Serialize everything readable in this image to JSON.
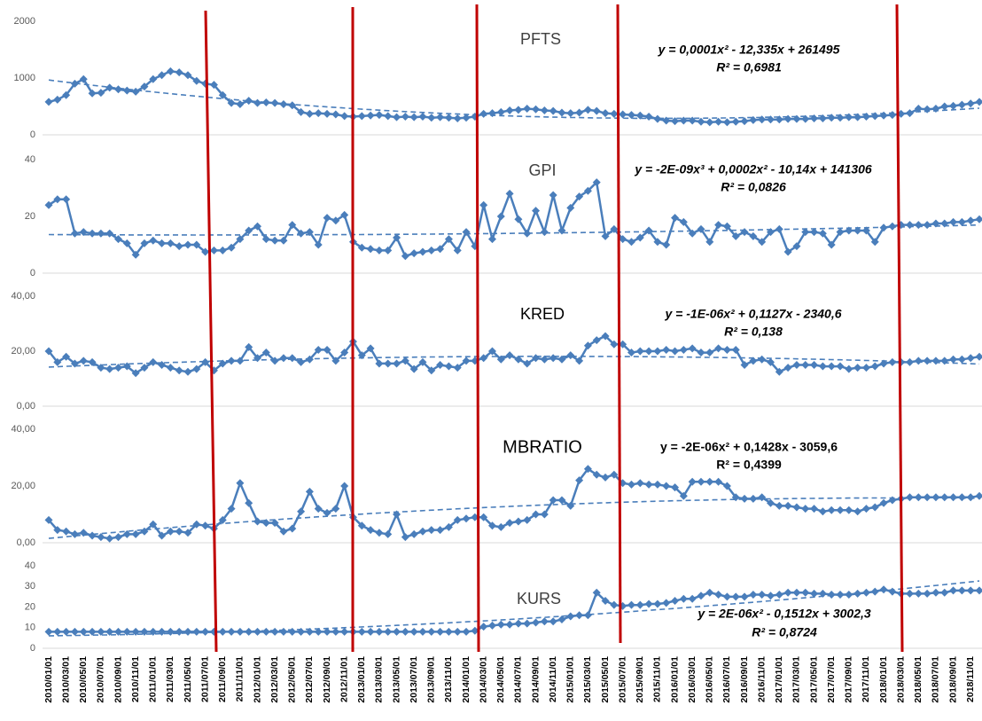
{
  "chart_data": [
    {
      "type": "line",
      "title": "PFTS",
      "equation": "y = 0,0001x² - 12,335x + 261495",
      "r2": "R² = 0,6981",
      "color": "#4a7ebb",
      "ylim": [
        0,
        2000
      ],
      "yticks": [
        0,
        1000,
        2000
      ],
      "values": [
        580,
        620,
        700,
        900,
        980,
        730,
        740,
        830,
        800,
        780,
        760,
        850,
        980,
        1050,
        1120,
        1100,
        1050,
        950,
        900,
        880,
        700,
        560,
        540,
        600,
        560,
        570,
        560,
        540,
        520,
        400,
        370,
        380,
        370,
        360,
        330,
        320,
        330,
        340,
        350,
        330,
        310,
        320,
        310,
        320,
        300,
        310,
        300,
        290,
        300,
        320,
        370,
        380,
        400,
        430,
        440,
        460,
        450,
        430,
        420,
        390,
        380,
        390,
        440,
        420,
        380,
        370,
        360,
        350,
        340,
        320,
        280,
        250,
        240,
        250,
        250,
        230,
        220,
        230,
        220,
        230,
        240,
        260,
        270,
        270,
        270,
        280,
        280,
        280,
        290,
        290,
        300,
        300,
        310,
        310,
        320,
        330,
        340,
        350,
        370,
        380,
        460,
        450,
        460,
        500,
        510,
        530,
        550,
        580
      ]
    },
    {
      "type": "line",
      "title": "GPI",
      "equation": "y = -2E-09x³ + 0,0002x² - 10,14x + 141306",
      "r2": "R² = 0,0826",
      "color": "#4a7ebb",
      "ylim": [
        0,
        40
      ],
      "yticks": [
        0,
        20,
        40
      ],
      "values": [
        24,
        26,
        26,
        14,
        14.5,
        14,
        14,
        14,
        12,
        10.5,
        6.5,
        10.5,
        11.5,
        10.5,
        10.5,
        9.5,
        10,
        10,
        7.5,
        8,
        8,
        9,
        12,
        15,
        16.5,
        12,
        11.5,
        11.5,
        17,
        14,
        14.5,
        10,
        19.5,
        18.5,
        20.5,
        11,
        9,
        8.5,
        8,
        8,
        12.5,
        6,
        7,
        7.5,
        8,
        8.5,
        12,
        8,
        14.5,
        9.5,
        24,
        12,
        20,
        28,
        19,
        14,
        22,
        14.5,
        27.5,
        15,
        23,
        27,
        29,
        32,
        13,
        15.5,
        12,
        11,
        12.5,
        15,
        11,
        10,
        19.5,
        18,
        14,
        15.5,
        11,
        17,
        16.5,
        13,
        14.5,
        13,
        11,
        14.5,
        15.5,
        7.5,
        9.5,
        14.5,
        14.5,
        14,
        10,
        14.5,
        15,
        15,
        15,
        11,
        16,
        16.5,
        17,
        17,
        17,
        17,
        17.5,
        17.5,
        18,
        18,
        18.5,
        19
      ]
    },
    {
      "type": "line",
      "title": "KRED",
      "equation": "y = -1E-06x² + 0,1127x - 2340,6",
      "r2": "R² = 0,138",
      "color": "#4a7ebb",
      "ylim": [
        0,
        40
      ],
      "yticks": [
        {
          "value": 0,
          "label": "0,00"
        },
        {
          "value": 20,
          "label": "20,00"
        },
        {
          "value": 40,
          "label": "40,00"
        }
      ],
      "values": [
        20,
        16,
        18,
        15.5,
        16.5,
        16,
        14,
        13.5,
        14,
        14.5,
        12,
        14,
        16,
        15,
        14,
        13,
        12.5,
        13.5,
        16,
        13,
        15.5,
        16.5,
        16.5,
        21.5,
        17.5,
        19.5,
        16.5,
        17.5,
        17.5,
        16,
        17,
        20.5,
        20.5,
        16.5,
        19.5,
        23.5,
        18.5,
        21,
        15.5,
        15.5,
        15.5,
        16.5,
        13.5,
        16,
        13,
        15,
        14.5,
        14,
        16.5,
        16.5,
        17.5,
        20,
        17,
        18.5,
        17,
        15.5,
        17.5,
        17,
        17.5,
        17,
        18.5,
        16.5,
        22,
        24,
        25.5,
        22.5,
        22.5,
        19.5,
        20,
        20,
        20,
        20.5,
        20,
        20.5,
        21,
        19.5,
        19.5,
        21,
        20.5,
        20.5,
        15,
        16.5,
        17,
        16,
        12.5,
        14,
        15,
        15,
        15,
        14.5,
        14.5,
        14.5,
        13.5,
        14,
        14,
        14.5,
        15.5,
        16,
        16,
        16,
        16.5,
        16.5,
        16.5,
        16.5,
        17,
        17,
        17.5,
        18
      ]
    },
    {
      "type": "line",
      "title": "MBRATIO",
      "equation": "y = -2E-06x² + 0,1428x - 3059,6",
      "r2": "R² = 0,4399",
      "color": "#4a7ebb",
      "ylim": [
        0,
        40
      ],
      "yticks": [
        {
          "value": 0,
          "label": "0,00"
        },
        {
          "value": 20,
          "label": "20,00"
        },
        {
          "value": 40,
          "label": "40,00"
        }
      ],
      "values": [
        8,
        4.5,
        4,
        3,
        3.5,
        2.5,
        2,
        1.5,
        2,
        3,
        3,
        4,
        6.5,
        2.5,
        4,
        4,
        3.5,
        6.5,
        6,
        5,
        8,
        12,
        21,
        14,
        7.5,
        7,
        7,
        4,
        5,
        11,
        18,
        12,
        10.5,
        12,
        20,
        9,
        6,
        4.5,
        3.5,
        3,
        10,
        2,
        3,
        4,
        4.5,
        4.5,
        5.5,
        8,
        8.5,
        9,
        9,
        6,
        5.5,
        7,
        7.5,
        8,
        10,
        10,
        15,
        15,
        13,
        22,
        26,
        24,
        23,
        24,
        21,
        20.5,
        21,
        20.5,
        20.5,
        20,
        19.5,
        16.5,
        21.5,
        21.5,
        21.5,
        21.5,
        20,
        16,
        15.5,
        15.5,
        16,
        14,
        13,
        13,
        12.5,
        12,
        12,
        11,
        11.5,
        11.5,
        11.5,
        11,
        12,
        12.5,
        14,
        15,
        15.5,
        16,
        16,
        16,
        16,
        16,
        16,
        16,
        16,
        16.5
      ]
    },
    {
      "type": "line",
      "title": "KURS",
      "equation": "y = 2E-06x² - 0,1512x + 3002,3",
      "r2": "R² = 0,8724",
      "color": "#4a7ebb",
      "ylim": [
        0,
        40
      ],
      "yticks": [
        0,
        10,
        20,
        30,
        40
      ],
      "categories": [
        "2010/01/01",
        null,
        "2010/03/01",
        null,
        "2010/05/01",
        null,
        "2010/07/01",
        null,
        "2010/09/01",
        null,
        "2010/11/01",
        null,
        "2011/01/01",
        null,
        "2011/03/01",
        null,
        "2011/05/01",
        null,
        "2011/07/01",
        null,
        "2011/09/01",
        null,
        "2011/11/01",
        null,
        "2012/01/01",
        null,
        "2012/03/01",
        null,
        "2012/05/01",
        null,
        "2012/07/01",
        null,
        "2012/09/01",
        null,
        "2012/11/01",
        null,
        "2013/01/01",
        null,
        "2013/03/01",
        null,
        "2013/05/01",
        null,
        "2013/07/01",
        null,
        "2013/09/01",
        null,
        "2013/11/01",
        null,
        "2014/01/01",
        null,
        "2014/03/01",
        null,
        "2014/05/01",
        null,
        "2014/07/01",
        null,
        "2014/09/01",
        null,
        "2014/11/01",
        null,
        "2015/01/01",
        null,
        "2015/03/01",
        null,
        "2015/05/01",
        null,
        "2015/07/01",
        null,
        "2015/09/01",
        null,
        "2015/11/01",
        null,
        "2016/01/01",
        null,
        "2016/03/01",
        null,
        "2016/05/01",
        null,
        "2016/07/01",
        null,
        "2016/09/01",
        null,
        "2016/11/01",
        null,
        "2017/01/01",
        null,
        "2017/03/01",
        null,
        "2017/05/01",
        null,
        "2017/07/01",
        null,
        "2017/09/01",
        null,
        "2017/11/01",
        null,
        "2018/01/01",
        null,
        "2018/03/01",
        null,
        "2018/05/01",
        null,
        "2018/07/01",
        null,
        "2018/09/01",
        null,
        "2018/11/01",
        null
      ],
      "values": [
        8,
        8,
        8,
        8,
        8,
        8,
        8,
        8,
        8,
        8,
        8,
        8,
        8,
        8,
        8,
        8,
        8,
        8,
        8,
        8,
        8,
        8,
        8,
        8,
        8,
        8,
        8,
        8,
        8,
        8,
        8,
        8,
        8,
        8,
        8,
        8,
        8,
        8,
        8,
        8,
        8,
        8,
        8,
        8,
        8,
        8,
        8,
        8,
        8,
        8.5,
        10.5,
        11,
        11.5,
        11.5,
        12,
        12,
        12.5,
        13,
        13,
        14,
        15.5,
        16,
        16,
        27,
        23,
        21,
        20.5,
        21,
        21,
        21.5,
        21.5,
        22,
        23,
        24,
        24,
        25.5,
        27,
        26,
        25,
        25,
        25,
        26,
        26,
        25.5,
        26,
        27,
        27,
        27,
        26.5,
        26.5,
        26,
        26,
        26,
        26.5,
        27,
        27.5,
        28.5,
        27.5,
        26.5,
        26.5,
        26.5,
        26.5,
        27,
        27,
        28,
        28,
        28,
        28
      ]
    }
  ]
}
